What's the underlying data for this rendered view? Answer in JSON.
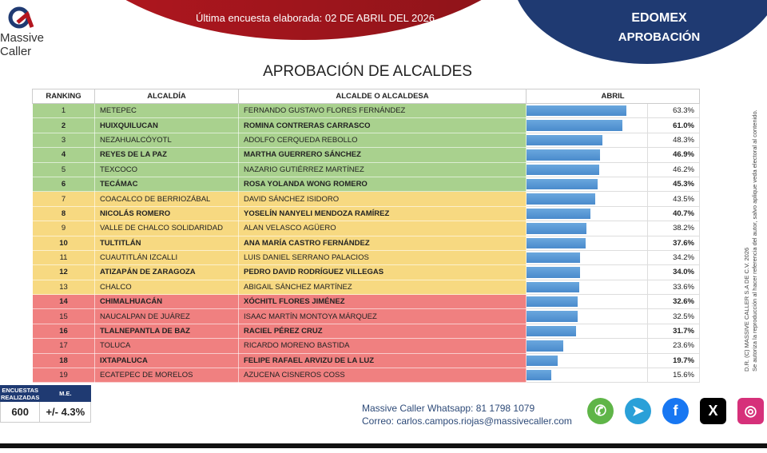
{
  "header": {
    "survey_date": "Última encuesta elaborada: 02 DE ABRIL DEL 2026",
    "region": "EDOMEX",
    "topic": "APROBACIÓN",
    "logo_text": [
      "Massive",
      "Caller"
    ]
  },
  "chart_data": {
    "type": "table",
    "title": "APROBACIÓN DE ALCALDES",
    "columns": [
      "RANKING",
      "ALCALDÍA",
      "ALCALDE O ALCALDESA",
      "ABRIL"
    ],
    "max_value": 100,
    "rows": [
      {
        "rank": "1",
        "mun": "METEPEC",
        "name": "FERNANDO GUSTAVO FLORES FERNÁNDEZ",
        "value": 63.3,
        "label": "63.3%",
        "color": "#a9d18e"
      },
      {
        "rank": "2",
        "mun": "HUIXQUILUCAN",
        "name": "ROMINA CONTRERAS CARRASCO",
        "value": 61.0,
        "label": "61.0%",
        "color": "#a9d18e"
      },
      {
        "rank": "3",
        "mun": "NEZAHUALCÓYOTL",
        "name": "ADOLFO CERQUEDA REBOLLO",
        "value": 48.3,
        "label": "48.3%",
        "color": "#a9d18e"
      },
      {
        "rank": "4",
        "mun": "REYES DE LA PAZ",
        "name": "MARTHA GUERRERO SÁNCHEZ",
        "value": 46.9,
        "label": "46.9%",
        "color": "#a9d18e"
      },
      {
        "rank": "5",
        "mun": "TEXCOCO",
        "name": "NAZARIO GUTIÉRREZ MARTÍNEZ",
        "value": 46.2,
        "label": "46.2%",
        "color": "#a9d18e"
      },
      {
        "rank": "6",
        "mun": "TECÁMAC",
        "name": "ROSA YOLANDA WONG ROMERO",
        "value": 45.3,
        "label": "45.3%",
        "color": "#a9d18e"
      },
      {
        "rank": "7",
        "mun": "COACALCO DE BERRIOZÁBAL",
        "name": "DAVID SÁNCHEZ ISIDORO",
        "value": 43.5,
        "label": "43.5%",
        "color": "#f7d981"
      },
      {
        "rank": "8",
        "mun": "NICOLÁS ROMERO",
        "name": "YOSELÍN NANYELI MENDOZA RAMÍREZ",
        "value": 40.7,
        "label": "40.7%",
        "color": "#f7d981"
      },
      {
        "rank": "9",
        "mun": "VALLE DE CHALCO SOLIDARIDAD",
        "name": "ALAN VELASCO AGÜERO",
        "value": 38.2,
        "label": "38.2%",
        "color": "#f7d981"
      },
      {
        "rank": "10",
        "mun": "TULTITLÁN",
        "name": "ANA MARÍA CASTRO FERNÁNDEZ",
        "value": 37.6,
        "label": "37.6%",
        "color": "#f7d981"
      },
      {
        "rank": "11",
        "mun": "CUAUTITLÁN IZCALLI",
        "name": "LUIS DANIEL SERRANO PALACIOS",
        "value": 34.2,
        "label": "34.2%",
        "color": "#f7d981"
      },
      {
        "rank": "12",
        "mun": "ATIZAPÁN DE ZARAGOZA",
        "name": "PEDRO DAVID RODRÍGUEZ VILLEGAS",
        "value": 34.0,
        "label": "34.0%",
        "color": "#f7d981"
      },
      {
        "rank": "13",
        "mun": "CHALCO",
        "name": "ABIGAIL SÁNCHEZ MARTÍNEZ",
        "value": 33.6,
        "label": "33.6%",
        "color": "#f7d981"
      },
      {
        "rank": "14",
        "mun": "CHIMALHUACÁN",
        "name": "XÓCHITL FLORES JIMÉNEZ",
        "value": 32.6,
        "label": "32.6%",
        "color": "#f08080"
      },
      {
        "rank": "15",
        "mun": "NAUCALPAN DE JUÁREZ",
        "name": "ISAAC MARTÍN MONTOYA MÁRQUEZ",
        "value": 32.5,
        "label": "32.5%",
        "color": "#f08080"
      },
      {
        "rank": "16",
        "mun": "TLALNEPANTLA DE BAZ",
        "name": "RACIEL PÉREZ CRUZ",
        "value": 31.7,
        "label": "31.7%",
        "color": "#f08080"
      },
      {
        "rank": "17",
        "mun": "TOLUCA",
        "name": "RICARDO MORENO BASTIDA",
        "value": 23.6,
        "label": "23.6%",
        "color": "#f08080"
      },
      {
        "rank": "18",
        "mun": "IXTAPALUCA",
        "name": "FELIPE RAFAEL ARVIZU DE LA LUZ",
        "value": 19.7,
        "label": "19.7%",
        "color": "#f08080"
      },
      {
        "rank": "19",
        "mun": "ECATEPEC DE MORELOS",
        "name": "AZUCENA CISNEROS COSS",
        "value": 15.6,
        "label": "15.6%",
        "color": "#f08080"
      }
    ]
  },
  "copyright": [
    "D.R. (C) MASSIVE CALLER S.A DE C.V. 2026",
    "Se autoriza la reproducción al hacer referencia del autor, salvo aplique veda electoral al contenido."
  ],
  "stats": {
    "h1": "ENCUESTAS REALIZADAS",
    "h2": "M.E.",
    "surveys": "600",
    "margin": "+/- 4.3%"
  },
  "contact": {
    "whatsapp": "Massive Caller Whatsapp: 81 1798 1079",
    "email": "Correo: carlos.campos.riojas@massivecaller.com"
  },
  "social": [
    {
      "icon": "whatsapp-icon",
      "color": "#5fb548",
      "glyph": "✆"
    },
    {
      "icon": "telegram-icon",
      "color": "#2aa0d8",
      "glyph": "➤"
    },
    {
      "icon": "facebook-icon",
      "color": "#1877f2",
      "glyph": "f"
    },
    {
      "icon": "x-icon",
      "color": "#000000",
      "glyph": "X"
    },
    {
      "icon": "instagram-icon",
      "color": "#d6307a",
      "glyph": "◎"
    }
  ]
}
